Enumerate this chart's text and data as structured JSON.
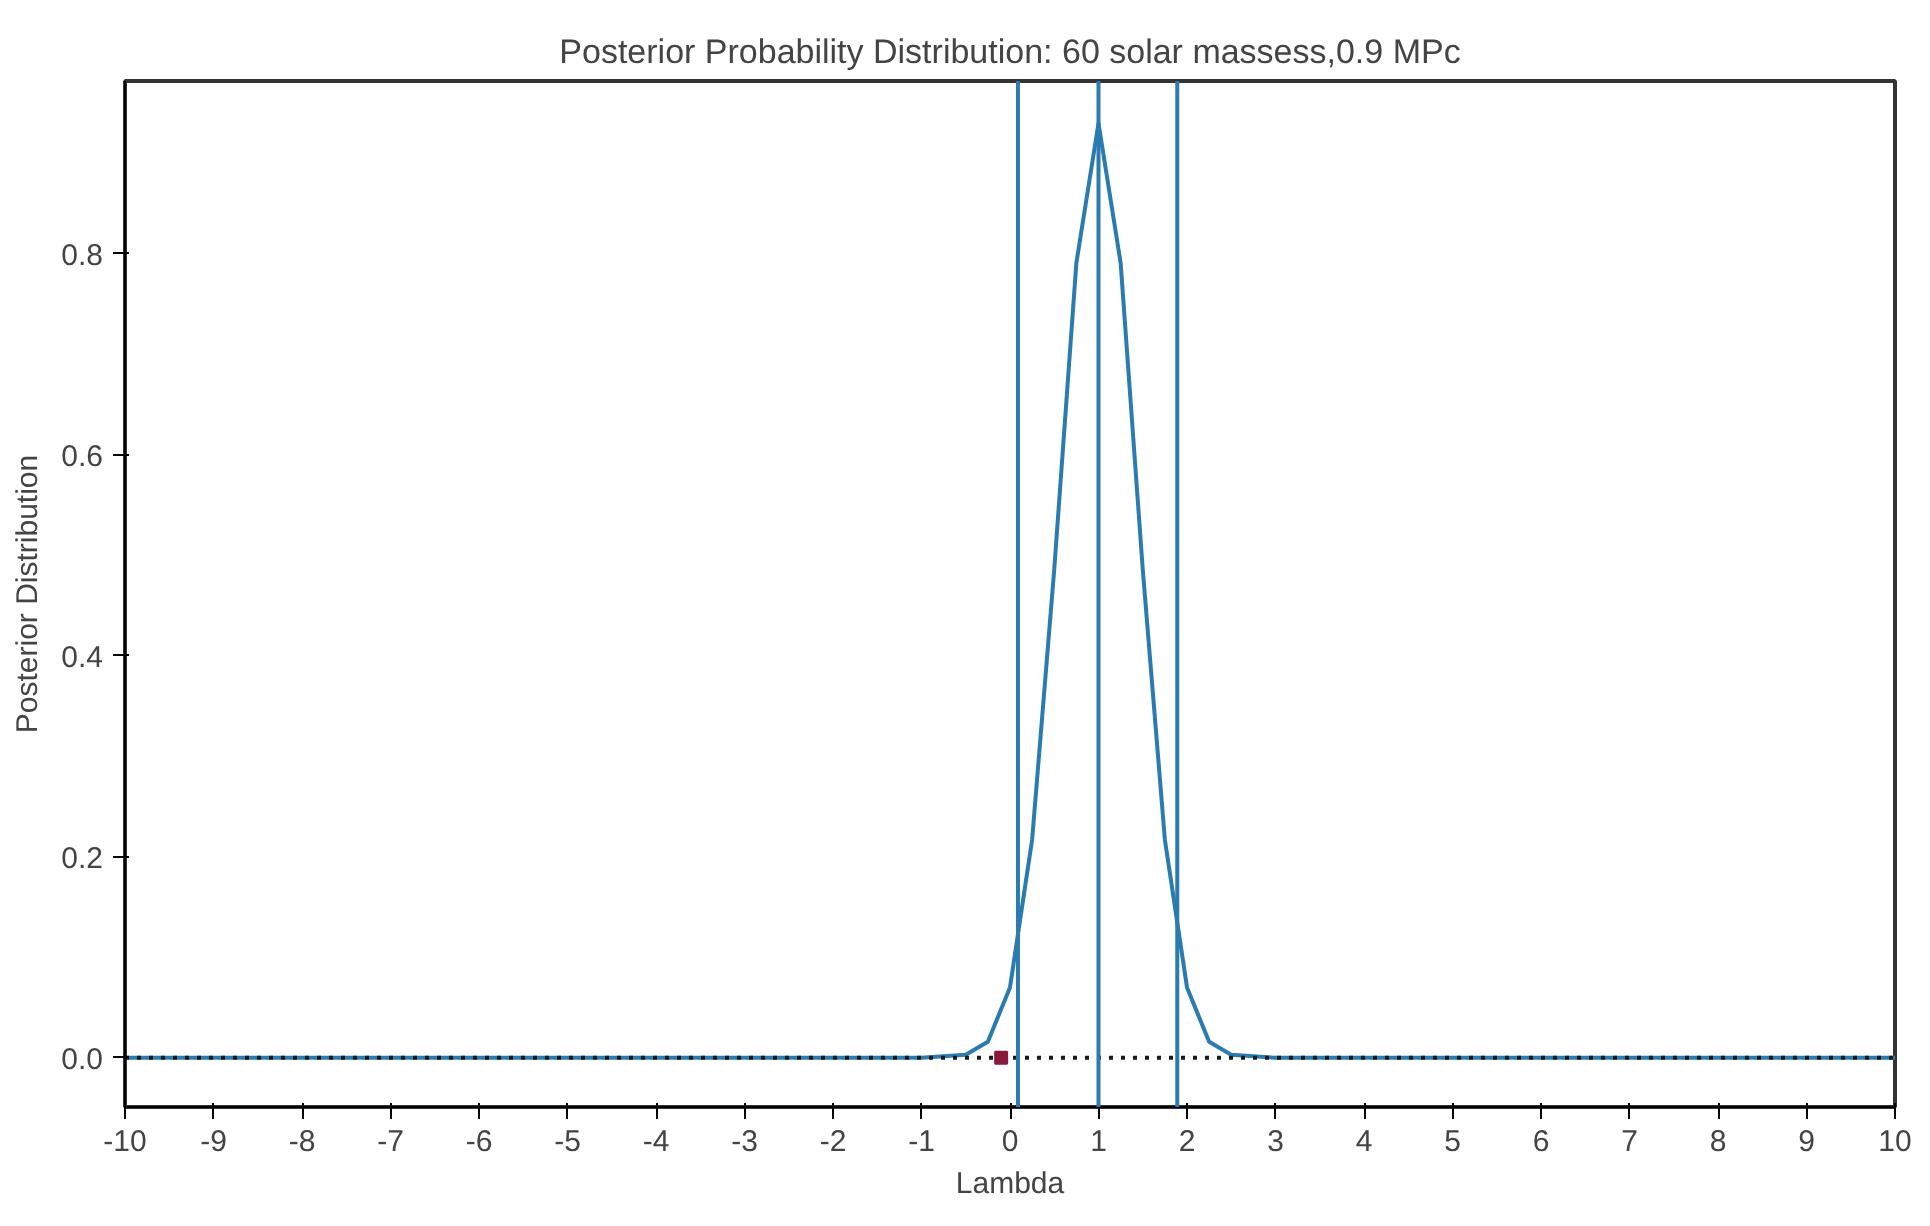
{
  "chart_data": {
    "type": "line",
    "title": "Posterior Probability Distribution: 60 solar massess,0.9 MPc",
    "xlabel": "Lambda",
    "ylabel": "Posterior Distribution",
    "xlim": [
      -10,
      10
    ],
    "ylim": [
      -0.049,
      0.972
    ],
    "xticks": [
      -10,
      -9,
      -8,
      -7,
      -6,
      -5,
      -4,
      -3,
      -2,
      -1,
      0,
      1,
      2,
      3,
      4,
      5,
      6,
      7,
      8,
      9,
      10
    ],
    "yticks": [
      {
        "value": 0,
        "label": "0.0"
      },
      {
        "value": 0.2,
        "label": "0.2"
      },
      {
        "value": 0.4,
        "label": "0.4"
      },
      {
        "value": 0.6,
        "label": "0.6"
      },
      {
        "value": 0.8,
        "label": "0.8"
      }
    ],
    "grid": false,
    "series": [
      {
        "color": "#2b7bb0",
        "line_style": "solid",
        "x": [
          -10,
          -5,
          -1,
          -0.5,
          -0.25,
          0,
          0.25,
          0.5,
          0.75,
          1,
          1.25,
          1.5,
          1.75,
          2,
          2.25,
          2.5,
          3,
          5,
          10
        ],
        "values": [
          0,
          0,
          0,
          0.003,
          0.016,
          0.07,
          0.217,
          0.486,
          0.791,
          0.93,
          0.791,
          0.486,
          0.217,
          0.07,
          0.016,
          0.003,
          0,
          0,
          0
        ]
      },
      {
        "color": "#1a1a1a",
        "line_style": "dotted",
        "x": [
          -10,
          10
        ],
        "values": [
          0,
          0
        ]
      },
      {
        "type": "scatter",
        "color": "#8b1a3a",
        "marker": "square",
        "x": [
          -0.1
        ],
        "values": [
          0
        ]
      }
    ],
    "ref_lines": [
      {
        "axis": "x",
        "value": 0.09,
        "color": "#2b7bb0"
      },
      {
        "axis": "x",
        "value": 1.0,
        "color": "#2b7bb0"
      },
      {
        "axis": "x",
        "value": 1.89,
        "color": "#2b7bb0"
      }
    ]
  }
}
